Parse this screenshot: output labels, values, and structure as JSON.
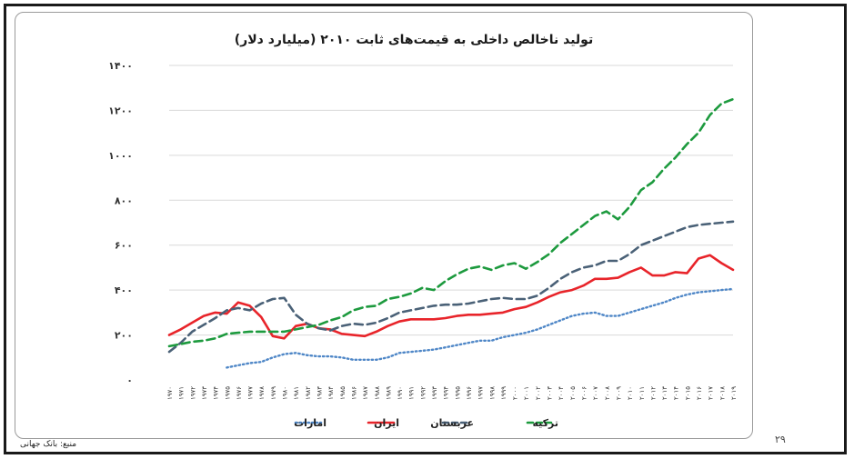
{
  "page": {
    "source_note": "منبع: بانک جهانی",
    "page_number": "۲۹"
  },
  "chart_data": {
    "type": "line",
    "title": "تولید ناخالص داخلی به قیمت‌های ثابت ۲۰۱۰ (میلیارد دلار)",
    "xlabel": "",
    "ylabel": "",
    "ylim": [
      0,
      1400
    ],
    "yticks": [
      0,
      200,
      400,
      600,
      800,
      1000,
      1200,
      1400
    ],
    "ytick_labels": [
      "۰",
      "۲۰۰",
      "۴۰۰",
      "۶۰۰",
      "۸۰۰",
      "۱۰۰۰",
      "۱۲۰۰",
      "۱۴۰۰"
    ],
    "x": [
      1970,
      1971,
      1972,
      1973,
      1974,
      1975,
      1976,
      1977,
      1978,
      1979,
      1980,
      1981,
      1982,
      1983,
      1984,
      1985,
      1986,
      1987,
      1988,
      1989,
      1990,
      1991,
      1992,
      1993,
      1994,
      1995,
      1996,
      1997,
      1998,
      1999,
      2000,
      2001,
      2002,
      2003,
      2004,
      2005,
      2006,
      2007,
      2008,
      2009,
      2010,
      2011,
      2012,
      2013,
      2014,
      2015,
      2016,
      2017,
      2018,
      2019
    ],
    "x_tick_labels": [
      "۱۹۷۰",
      "۱۹۷۱",
      "۱۹۷۲",
      "۱۹۷۳",
      "۱۹۷۴",
      "۱۹۷۵",
      "۱۹۷۶",
      "۱۹۷۷",
      "۱۹۷۸",
      "۱۹۷۹",
      "۱۹۸۰",
      "۱۹۸۱",
      "۱۹۸۲",
      "۱۹۸۳",
      "۱۹۸۴",
      "۱۹۸۵",
      "۱۹۸۶",
      "۱۹۸۷",
      "۱۹۸۸",
      "۱۹۸۹",
      "۱۹۹۰",
      "۱۹۹۱",
      "۱۹۹۲",
      "۱۹۹۳",
      "۱۹۹۴",
      "۱۹۹۵",
      "۱۹۹۶",
      "۱۹۹۷",
      "۱۹۹۸",
      "۱۹۹۹",
      "۲۰۰۰",
      "۲۰۰۱",
      "۲۰۰۲",
      "۲۰۰۳",
      "۲۰۰۴",
      "۲۰۰۵",
      "۲۰۰۶",
      "۲۰۰۷",
      "۲۰۰۸",
      "۲۰۰۹",
      "۲۰۱۰",
      "۲۰۱۱",
      "۲۰۱۲",
      "۲۰۱۳",
      "۲۰۱۴",
      "۲۰۱۵",
      "۲۰۱۶",
      "۲۰۱۷",
      "۲۰۱۸",
      "۲۰۱۹"
    ],
    "grid": "horizontal",
    "legend_position": "bottom",
    "series": [
      {
        "name": "امارات",
        "color": "#4f87c7",
        "style": "dotted",
        "values": [
          null,
          null,
          null,
          null,
          null,
          55,
          65,
          75,
          80,
          100,
          115,
          120,
          110,
          105,
          105,
          100,
          90,
          90,
          90,
          100,
          120,
          125,
          130,
          135,
          145,
          155,
          165,
          175,
          175,
          190,
          200,
          210,
          225,
          245,
          265,
          285,
          295,
          300,
          285,
          285,
          300,
          315,
          330,
          345,
          365,
          380,
          390,
          395,
          400,
          405
        ]
      },
      {
        "name": "ایران",
        "color": "#e8242a",
        "style": "solid",
        "values": [
          200,
          225,
          255,
          285,
          300,
          295,
          345,
          330,
          280,
          195,
          185,
          240,
          250,
          230,
          225,
          205,
          200,
          195,
          215,
          240,
          260,
          270,
          270,
          270,
          275,
          285,
          290,
          290,
          295,
          300,
          315,
          325,
          345,
          370,
          390,
          400,
          420,
          450,
          450,
          455,
          480,
          500,
          465,
          465,
          480,
          475,
          540,
          555,
          520,
          490
        ]
      },
      {
        "name": "عربستان",
        "color": "#4a6177",
        "style": "dashed",
        "values": [
          125,
          165,
          215,
          245,
          275,
          310,
          320,
          310,
          340,
          360,
          365,
          290,
          250,
          230,
          220,
          240,
          250,
          245,
          255,
          275,
          300,
          310,
          320,
          330,
          335,
          335,
          340,
          350,
          360,
          365,
          360,
          360,
          375,
          410,
          450,
          480,
          500,
          510,
          530,
          530,
          560,
          600,
          620,
          640,
          660,
          680,
          690,
          695,
          700,
          705
        ]
      },
      {
        "name": "ترکیه",
        "color": "#1d9a3e",
        "style": "dashed",
        "values": [
          150,
          160,
          170,
          175,
          185,
          205,
          210,
          215,
          215,
          215,
          215,
          225,
          235,
          245,
          265,
          280,
          310,
          325,
          330,
          360,
          370,
          385,
          410,
          400,
          440,
          470,
          495,
          505,
          490,
          510,
          520,
          495,
          525,
          560,
          610,
          650,
          690,
          730,
          750,
          715,
          770,
          845,
          880,
          940,
          990,
          1050,
          1100,
          1180,
          1230,
          1250
        ]
      }
    ]
  }
}
